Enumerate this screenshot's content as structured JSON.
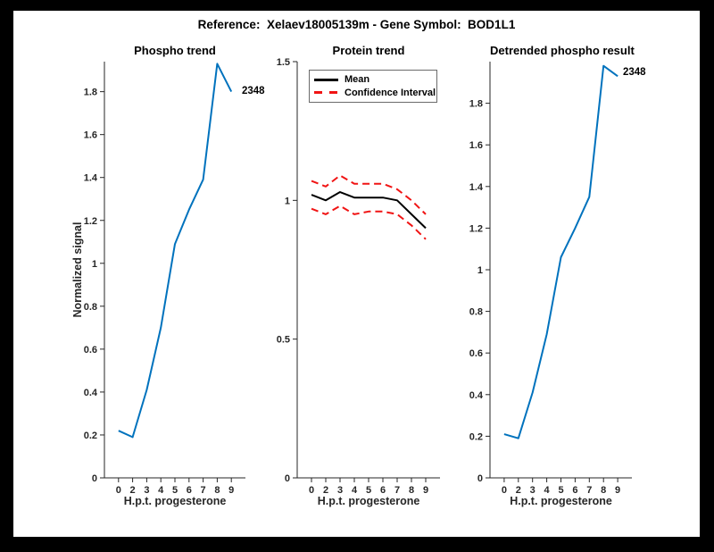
{
  "figure": {
    "background": "#000000",
    "canvas_background": "#ffffff",
    "title": "Reference:  Xelaev18005139m - Gene Symbol:  BOD1L1"
  },
  "colors": {
    "line_blue": "#0072bd",
    "ci_red": "#f01414",
    "mean_black": "#000000",
    "axis": "#262626"
  },
  "chart_data": [
    {
      "id": "phospho-trend",
      "type": "line",
      "title": "Phospho trend",
      "xlabel": "H.p.t. progesterone",
      "ylabel": "Normalized signal",
      "grid": false,
      "xlim": [
        0,
        10
      ],
      "ylim": [
        0,
        1.94
      ],
      "x": [
        1,
        2,
        3,
        4,
        5,
        6,
        7,
        8,
        9
      ],
      "x_tick_labels": [
        "0",
        "2",
        "3",
        "4",
        "5",
        "6",
        "7",
        "8",
        "9"
      ],
      "y_ticks": [
        0,
        0.2,
        0.4,
        0.6,
        0.8,
        1,
        1.2,
        1.4,
        1.6,
        1.8
      ],
      "y_tick_labels": [
        "0",
        "0.2",
        "0.4",
        "0.6",
        "0.8",
        "1",
        "1.2",
        "1.4",
        "1.6",
        "1.8"
      ],
      "series": [
        {
          "name": "phospho 2348",
          "color": "line_blue",
          "style": "solid",
          "values": [
            0.22,
            0.19,
            0.41,
            0.7,
            1.09,
            1.25,
            1.39,
            1.93,
            1.8
          ]
        }
      ],
      "end_label": "2348"
    },
    {
      "id": "protein-trend",
      "type": "line",
      "title": "Protein trend",
      "xlabel": "H.p.t. progesterone",
      "ylabel": "",
      "grid": false,
      "xlim": [
        0,
        10
      ],
      "ylim": [
        0,
        1.5
      ],
      "x": [
        1,
        2,
        3,
        4,
        5,
        6,
        7,
        8,
        9
      ],
      "x_tick_labels": [
        "0",
        "2",
        "3",
        "4",
        "5",
        "6",
        "7",
        "8",
        "9"
      ],
      "y_ticks": [
        0,
        0.5,
        1,
        1.5
      ],
      "y_tick_labels": [
        "0",
        "0.5",
        "1",
        "1.5"
      ],
      "legend": {
        "position": "top-left",
        "entries": [
          "Mean",
          "Confidence Interval"
        ]
      },
      "series": [
        {
          "name": "Mean",
          "color": "mean_black",
          "style": "solid",
          "values": [
            1.02,
            1.0,
            1.03,
            1.01,
            1.01,
            1.01,
            1.0,
            0.95,
            0.9
          ]
        },
        {
          "name": "Confidence Interval upper",
          "color": "ci_red",
          "style": "dashed",
          "values": [
            1.07,
            1.05,
            1.09,
            1.06,
            1.06,
            1.06,
            1.04,
            1.0,
            0.95
          ]
        },
        {
          "name": "Confidence Interval lower",
          "color": "ci_red",
          "style": "dashed",
          "values": [
            0.97,
            0.95,
            0.98,
            0.95,
            0.96,
            0.96,
            0.95,
            0.91,
            0.86
          ]
        }
      ]
    },
    {
      "id": "detrended-phospho-result",
      "type": "line",
      "title": "Detrended phospho result",
      "xlabel": "H.p.t. progesterone",
      "ylabel": "",
      "grid": false,
      "xlim": [
        0,
        10
      ],
      "ylim": [
        0,
        2.0
      ],
      "x": [
        1,
        2,
        3,
        4,
        5,
        6,
        7,
        8,
        9
      ],
      "x_tick_labels": [
        "0",
        "2",
        "3",
        "4",
        "5",
        "6",
        "7",
        "8",
        "9"
      ],
      "y_ticks": [
        0,
        0.2,
        0.4,
        0.6,
        0.8,
        1,
        1.2,
        1.4,
        1.6,
        1.8
      ],
      "y_tick_labels": [
        "0",
        "0.2",
        "0.4",
        "0.6",
        "0.8",
        "1",
        "1.2",
        "1.4",
        "1.6",
        "1.8"
      ],
      "series": [
        {
          "name": "detrended phospho 2348",
          "color": "line_blue",
          "style": "solid",
          "values": [
            0.21,
            0.19,
            0.41,
            0.69,
            1.06,
            1.2,
            1.35,
            1.98,
            1.93
          ]
        }
      ],
      "end_label": "2348"
    }
  ]
}
